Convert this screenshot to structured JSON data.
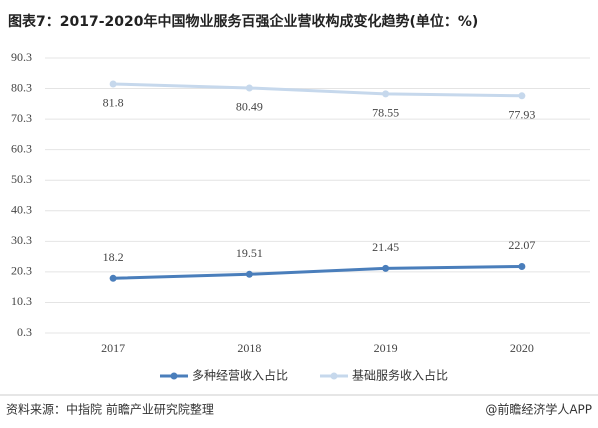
{
  "chart_data": {
    "type": "line",
    "title": "图表7：2017-2020年中国物业服务百强企业营收构成变化趋势(单位：%)",
    "categories": [
      "2017",
      "2018",
      "2019",
      "2020"
    ],
    "series": [
      {
        "name": "多种经营收入占比",
        "color": "#4a7ebb",
        "values": [
          18.2,
          19.51,
          21.45,
          22.07
        ]
      },
      {
        "name": "基础服务收入占比",
        "color": "#c6d8ec",
        "values": [
          81.8,
          80.49,
          78.55,
          77.93
        ]
      }
    ],
    "ylim": [
      0.3,
      90.3
    ],
    "yticks": [
      0.3,
      10.3,
      20.3,
      30.3,
      40.3,
      50.3,
      60.3,
      70.3,
      80.3,
      90.3
    ],
    "grid": true,
    "legend": "bottom",
    "source": "资料来源：中指院 前瞻产业研究院整理",
    "brand": "@前瞻经济学人APP"
  }
}
